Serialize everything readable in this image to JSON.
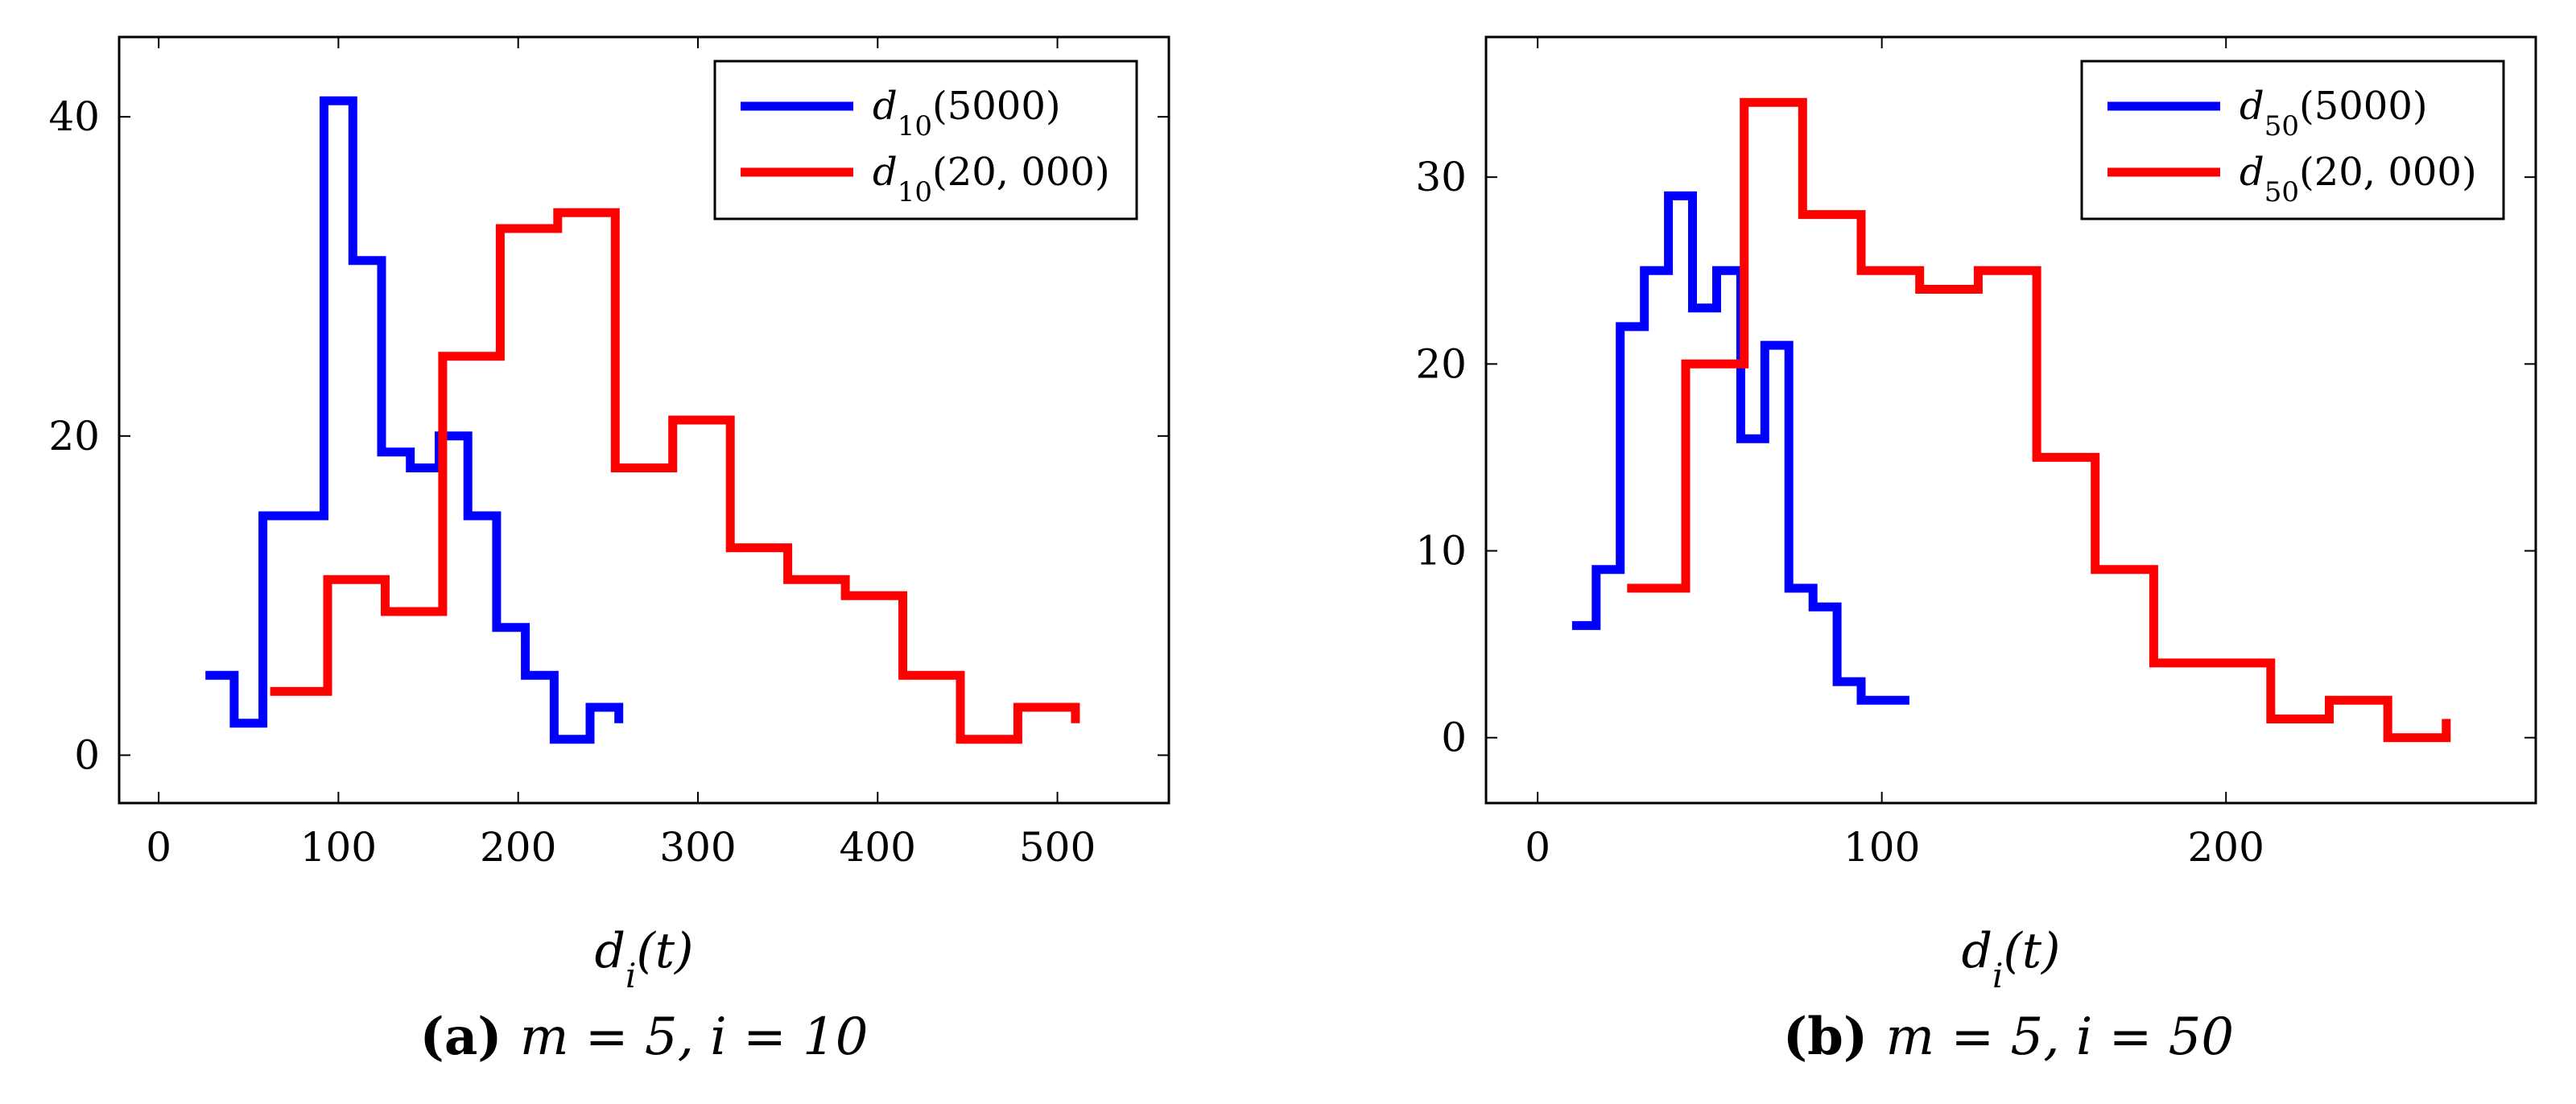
{
  "chart_data": [
    {
      "type": "line",
      "step": true,
      "caption_letter": "(a)",
      "caption_text": "m = 5, i = 10",
      "xlabel": "d_i(t)",
      "ylabel": "",
      "xlim": [
        -22,
        562
      ],
      "ylim": [
        -3,
        45
      ],
      "xticks": [
        0,
        100,
        200,
        300,
        400,
        500
      ],
      "yticks": [
        0,
        20,
        40
      ],
      "legend_position": "top-right",
      "series": [
        {
          "name": "d10(5000)",
          "legend_base": "d",
          "legend_sub": "10",
          "legend_arg": "(5000)",
          "color": "#0000ff",
          "x": [
            26,
            42,
            58,
            74,
            92,
            108,
            124,
            140,
            156,
            172,
            188,
            204,
            220,
            240,
            256
          ],
          "y": [
            5,
            2,
            15,
            15,
            41,
            31,
            19,
            18,
            20,
            15,
            8,
            5,
            1,
            3,
            2
          ]
        },
        {
          "name": "d10(20,000)",
          "legend_base": "d",
          "legend_sub": "10",
          "legend_arg": "(20, 000)",
          "color": "#ff0000",
          "x": [
            62,
            94,
            126,
            158,
            190,
            222,
            254,
            286,
            318,
            350,
            382,
            414,
            446,
            478,
            510
          ],
          "y": [
            4,
            11,
            9,
            25,
            33,
            34,
            18,
            21,
            13,
            11,
            10,
            5,
            1,
            3,
            2
          ]
        }
      ]
    },
    {
      "type": "line",
      "step": true,
      "caption_letter": "(b)",
      "caption_text": "m = 5, i = 50",
      "xlabel": "d_i(t)",
      "ylabel": "",
      "xlim": [
        -15,
        290
      ],
      "ylim": [
        -3.5,
        37.5
      ],
      "xticks": [
        0,
        100,
        200
      ],
      "yticks": [
        0,
        10,
        20,
        30
      ],
      "legend_position": "top-right",
      "series": [
        {
          "name": "d50(5000)",
          "legend_base": "d",
          "legend_sub": "50",
          "legend_arg": "(5000)",
          "color": "#0000ff",
          "x": [
            10,
            17,
            24,
            31,
            38,
            45,
            52,
            59,
            66,
            73,
            80,
            87,
            94,
            101,
            108
          ],
          "y": [
            6,
            9,
            22,
            25,
            29,
            23,
            25,
            16,
            21,
            8,
            7,
            3,
            2,
            2,
            2
          ]
        },
        {
          "name": "d50(20,000)",
          "legend_base": "d",
          "legend_sub": "50",
          "legend_arg": "(20, 000)",
          "color": "#ff0000",
          "x": [
            26,
            43,
            60,
            77,
            94,
            111,
            128,
            145,
            162,
            179,
            196,
            213,
            230,
            247,
            264
          ],
          "y": [
            8,
            20,
            34,
            28,
            25,
            24,
            25,
            15,
            9,
            4,
            4,
            1,
            2,
            0,
            1
          ]
        }
      ]
    }
  ]
}
